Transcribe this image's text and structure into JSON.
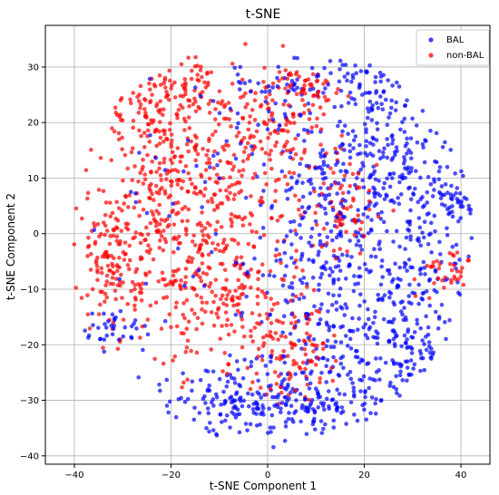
{
  "chart_data": {
    "type": "scatter",
    "title": "t-SNE",
    "xlabel": "t-SNE Component 1",
    "ylabel": "t-SNE Component 2",
    "xlim": [
      -46,
      46
    ],
    "ylim": [
      -41.5,
      37.5
    ],
    "xticks": [
      -40,
      -20,
      0,
      20,
      40
    ],
    "yticks": [
      -40,
      -30,
      -20,
      -10,
      0,
      10,
      20,
      30
    ],
    "grid": true,
    "legend_position": "top-right",
    "series": [
      {
        "name": "BAL",
        "color": "#0000ff",
        "regions": [
          {
            "cx": 18,
            "cy": -10,
            "sx": 10,
            "sy": 14,
            "n": 360
          },
          {
            "cx": 25,
            "cy": 15,
            "sx": 6,
            "sy": 10,
            "n": 170
          },
          {
            "cx": 22,
            "cy": 27,
            "sx": 5,
            "sy": 3,
            "n": 50
          },
          {
            "cx": 6,
            "cy": -30,
            "sx": 12,
            "sy": 4,
            "n": 170
          },
          {
            "cx": -8,
            "cy": -30,
            "sx": 8,
            "sy": 4,
            "n": 90
          },
          {
            "cx": 36,
            "cy": 0,
            "sx": 5,
            "sy": 10,
            "n": 90
          },
          {
            "cx": 40,
            "cy": 6,
            "sx": 2,
            "sy": 2,
            "n": 30
          },
          {
            "cx": 2,
            "cy": 26,
            "sx": 6,
            "sy": 3,
            "n": 50
          },
          {
            "cx": -32,
            "cy": -17,
            "sx": 3,
            "sy": 1.8,
            "n": 35
          },
          {
            "cx": 30,
            "cy": -22,
            "sx": 6,
            "sy": 5,
            "n": 80
          },
          {
            "cx": 10,
            "cy": 5,
            "sx": 6,
            "sy": 12,
            "n": 110
          },
          {
            "cx": -15,
            "cy": 10,
            "sx": 10,
            "sy": 10,
            "n": 50
          }
        ]
      },
      {
        "name": "non-BAL",
        "color": "#ff0000",
        "regions": [
          {
            "cx": -12,
            "cy": 5,
            "sx": 10,
            "sy": 12,
            "n": 360
          },
          {
            "cx": -32,
            "cy": -5,
            "sx": 4,
            "sy": 7,
            "n": 140
          },
          {
            "cx": -22,
            "cy": 5,
            "sx": 6,
            "sy": 12,
            "n": 160
          },
          {
            "cx": 2,
            "cy": 20,
            "sx": 6,
            "sy": 6,
            "n": 110
          },
          {
            "cx": 5,
            "cy": -22,
            "sx": 5,
            "sy": 4,
            "n": 90
          },
          {
            "cx": -16,
            "cy": 26,
            "sx": 4,
            "sy": 3,
            "n": 60
          },
          {
            "cx": 16,
            "cy": 5,
            "sx": 4,
            "sy": 5,
            "n": 70
          },
          {
            "cx": 38,
            "cy": -7,
            "sx": 3,
            "sy": 1.8,
            "n": 35
          },
          {
            "cx": -6,
            "cy": -12,
            "sx": 6,
            "sy": 6,
            "n": 110
          },
          {
            "cx": 8,
            "cy": 26,
            "sx": 3,
            "sy": 2,
            "n": 40
          },
          {
            "cx": -26,
            "cy": 22,
            "sx": 4,
            "sy": 6,
            "n": 50
          }
        ]
      }
    ]
  }
}
